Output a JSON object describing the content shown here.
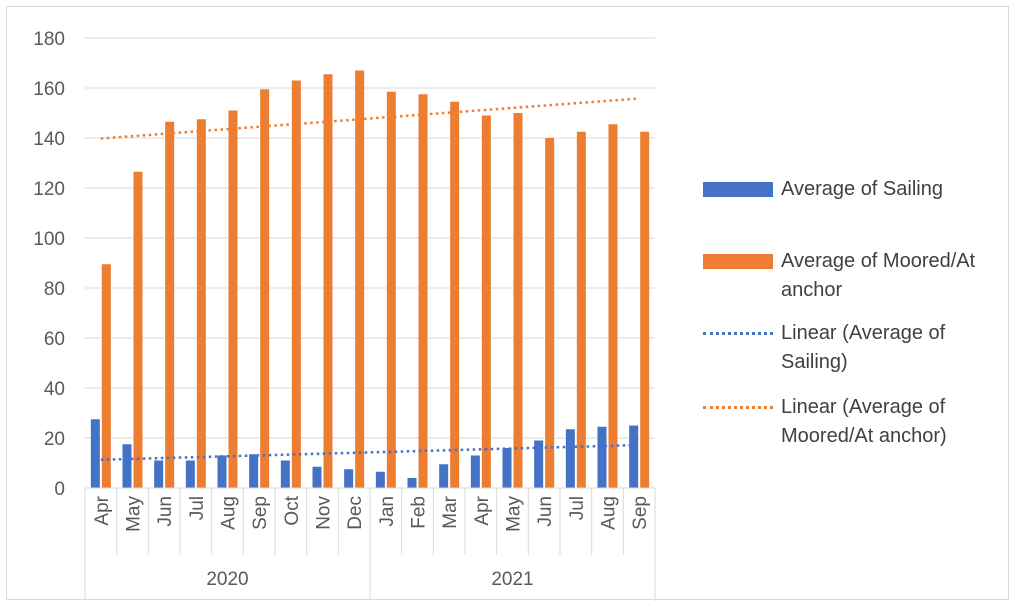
{
  "chart_data": {
    "type": "bar",
    "categories": [
      "Apr",
      "May",
      "Jun",
      "Jul",
      "Aug",
      "Sep",
      "Oct",
      "Nov",
      "Dec",
      "Jan",
      "Feb",
      "Mar",
      "Apr",
      "May",
      "Jun",
      "Jul",
      "Aug",
      "Sep"
    ],
    "groups": [
      {
        "label": "2020",
        "count": 9
      },
      {
        "label": "2021",
        "count": 9
      }
    ],
    "series": [
      {
        "name": "Average of Sailing",
        "color": "#4472c4",
        "values": [
          27.5,
          17.5,
          11,
          11,
          13,
          13.5,
          11,
          8.5,
          7.5,
          6.5,
          4,
          9.5,
          13,
          16,
          19,
          23.5,
          24.5,
          25
        ]
      },
      {
        "name": "Average of Moored/At anchor",
        "color": "#ed7d31",
        "values": [
          89.5,
          126.5,
          146.5,
          147.5,
          151,
          159.5,
          163,
          165.5,
          167,
          158.5,
          157.5,
          154.5,
          149,
          150,
          140,
          142.5,
          145.5,
          142.5
        ]
      }
    ],
    "trendlines": [
      {
        "name": "Linear (Average of Sailing)",
        "color": "#4472c4",
        "start": 11.3,
        "end": 17.2
      },
      {
        "name": "Linear (Average of Moored/At anchor)",
        "color": "#ed7d31",
        "start": 139.8,
        "end": 155.8
      }
    ],
    "ylim": [
      0,
      180
    ],
    "yticks": [
      0,
      20,
      40,
      60,
      80,
      100,
      120,
      140,
      160,
      180
    ],
    "grid": true,
    "legend": "right"
  }
}
